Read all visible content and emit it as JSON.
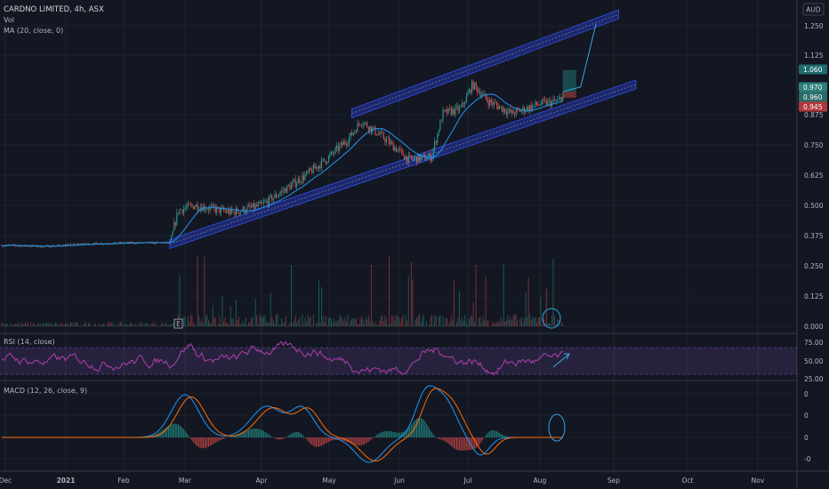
{
  "header": {
    "symbol_line": "CARDNO LIMITED, 4h, ASX",
    "vol_label": "Vol",
    "ma_label": "MA (20, close, 0)",
    "currency": "AUD"
  },
  "panes": {
    "rsi_label": "RSI (14, close)",
    "macd_label": "MACD (12, 26, close, 9)",
    "earnings_marker": "E"
  },
  "colors": {
    "background": "#131722",
    "grid": "#2a2e39",
    "candle_up": "#26a69a",
    "candle_down": "#ef5350",
    "ma_line": "#2196f3",
    "channel": "#2b3fc4",
    "rsi_line": "#b03fa8",
    "rsi_band": "#7e57c2",
    "annotation": "#3aa3e3"
  },
  "chart_data": {
    "type": "candlestick",
    "x_ticks": [
      "Dec",
      "2021",
      "Feb",
      "Mar",
      "Apr",
      "May",
      "Jun",
      "Jul",
      "Aug",
      "Sep",
      "Oct",
      "Nov"
    ],
    "price_axis": {
      "ticks": [
        "1.250",
        "1.125",
        "0.875",
        "0.750",
        "0.625",
        "0.500",
        "0.375",
        "0.250",
        "0.125",
        "0.000"
      ],
      "range": [
        0,
        1.3
      ]
    },
    "price_tags": [
      {
        "value": "1.060",
        "color": "#1e6b6b"
      },
      {
        "value": "0.970",
        "color": "#2d7d7a"
      },
      {
        "value": "0.960",
        "color": "#2a6b68"
      },
      {
        "value": "0.945",
        "color": "#b03a3a"
      }
    ],
    "price_path": [
      [
        "2020-12-01",
        0.335
      ],
      [
        "2020-12-20",
        0.33
      ],
      [
        "2021-01-10",
        0.34
      ],
      [
        "2021-02-01",
        0.345
      ],
      [
        "2021-02-22",
        0.345
      ],
      [
        "2021-02-26",
        0.48
      ],
      [
        "2021-03-05",
        0.5
      ],
      [
        "2021-03-20",
        0.47
      ],
      [
        "2021-04-01",
        0.5
      ],
      [
        "2021-04-20",
        0.62
      ],
      [
        "2021-05-01",
        0.7
      ],
      [
        "2021-05-10",
        0.78
      ],
      [
        "2021-05-15",
        0.85
      ],
      [
        "2021-05-25",
        0.78
      ],
      [
        "2021-06-05",
        0.69
      ],
      [
        "2021-06-15",
        0.7
      ],
      [
        "2021-06-20",
        0.88
      ],
      [
        "2021-06-28",
        0.9
      ],
      [
        "2021-07-03",
        1.0
      ],
      [
        "2021-07-10",
        0.93
      ],
      [
        "2021-07-20",
        0.88
      ],
      [
        "2021-08-01",
        0.92
      ],
      [
        "2021-08-09",
        0.93
      ],
      [
        "2021-08-11",
        0.97
      ]
    ],
    "channel": {
      "upper": [
        [
          "2021-05-11",
          0.88
        ],
        [
          "2021-09-03",
          1.29
        ]
      ],
      "lower": [
        [
          "2021-02-22",
          0.34
        ],
        [
          "2021-09-10",
          1.0
        ]
      ]
    },
    "rsi_axis": {
      "ticks": [
        "75.00",
        "50.00",
        "25.00"
      ],
      "band": [
        30,
        70
      ]
    },
    "macd_axis": {
      "ticks": [
        "0",
        "0",
        "0",
        "-0"
      ]
    }
  }
}
